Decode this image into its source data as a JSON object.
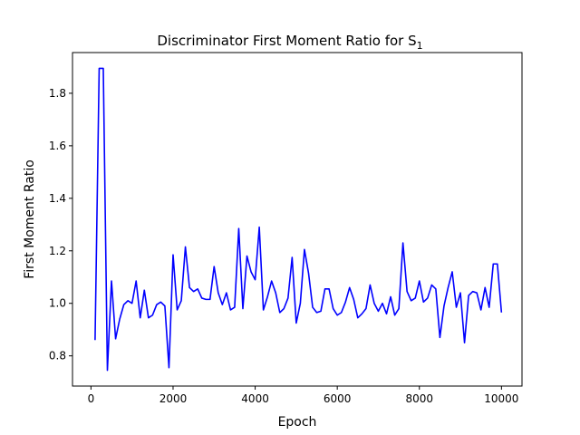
{
  "chart_data": {
    "type": "line",
    "title": "Discriminator First Moment Ratio for S",
    "title_subscript": "1",
    "xlabel": "Epoch",
    "ylabel": "First Moment Ratio",
    "xlim": [
      -450,
      10500
    ],
    "ylim": [
      0.685,
      1.955
    ],
    "xticks": [
      0,
      2000,
      4000,
      6000,
      8000,
      10000
    ],
    "yticks": [
      0.8,
      1.0,
      1.2,
      1.4,
      1.6,
      1.8
    ],
    "ytick_labels": [
      "0.8",
      "1.0",
      "1.2",
      "1.4",
      "1.6",
      "1.8"
    ],
    "grid": false,
    "series": [
      {
        "color": "#0000ff",
        "x": [
          100,
          200,
          300,
          400,
          500,
          600,
          700,
          800,
          900,
          1000,
          1100,
          1200,
          1300,
          1400,
          1500,
          1600,
          1700,
          1800,
          1900,
          2000,
          2100,
          2200,
          2300,
          2400,
          2500,
          2600,
          2700,
          2800,
          2900,
          3000,
          3100,
          3200,
          3300,
          3400,
          3500,
          3600,
          3700,
          3800,
          3900,
          4000,
          4100,
          4200,
          4300,
          4400,
          4500,
          4600,
          4700,
          4800,
          4900,
          5000,
          5100,
          5200,
          5300,
          5400,
          5500,
          5600,
          5700,
          5800,
          5900,
          6000,
          6100,
          6200,
          6300,
          6400,
          6500,
          6600,
          6700,
          6800,
          6900,
          7000,
          7100,
          7200,
          7300,
          7400,
          7500,
          7600,
          7700,
          7800,
          7900,
          8000,
          8100,
          8200,
          8300,
          8400,
          8500,
          8600,
          8700,
          8800,
          8900,
          9000,
          9100,
          9200,
          9300,
          9400,
          9500,
          9600,
          9700,
          9800,
          9900,
          10000
        ],
        "y": [
          0.86,
          1.895,
          1.895,
          0.745,
          1.085,
          0.865,
          0.94,
          0.995,
          1.01,
          1.0,
          1.085,
          0.945,
          1.05,
          0.945,
          0.955,
          0.995,
          1.005,
          0.99,
          0.755,
          1.185,
          0.975,
          1.01,
          1.215,
          1.06,
          1.045,
          1.055,
          1.02,
          1.015,
          1.015,
          1.14,
          1.04,
          0.995,
          1.04,
          0.975,
          0.985,
          1.285,
          0.98,
          1.18,
          1.12,
          1.09,
          1.29,
          0.975,
          1.025,
          1.085,
          1.04,
          0.965,
          0.98,
          1.02,
          1.175,
          0.925,
          1.0,
          1.205,
          1.115,
          0.985,
          0.965,
          0.97,
          1.055,
          1.055,
          0.98,
          0.955,
          0.965,
          1.005,
          1.06,
          1.015,
          0.945,
          0.96,
          0.98,
          1.07,
          1.0,
          0.97,
          1.0,
          0.96,
          1.025,
          0.955,
          0.98,
          1.23,
          1.045,
          1.01,
          1.02,
          1.085,
          1.005,
          1.02,
          1.07,
          1.055,
          0.87,
          0.99,
          1.06,
          1.12,
          0.985,
          1.04,
          0.85,
          1.03,
          1.045,
          1.04,
          0.975,
          1.06,
          0.985,
          1.15,
          1.15,
          0.965
        ]
      }
    ]
  }
}
